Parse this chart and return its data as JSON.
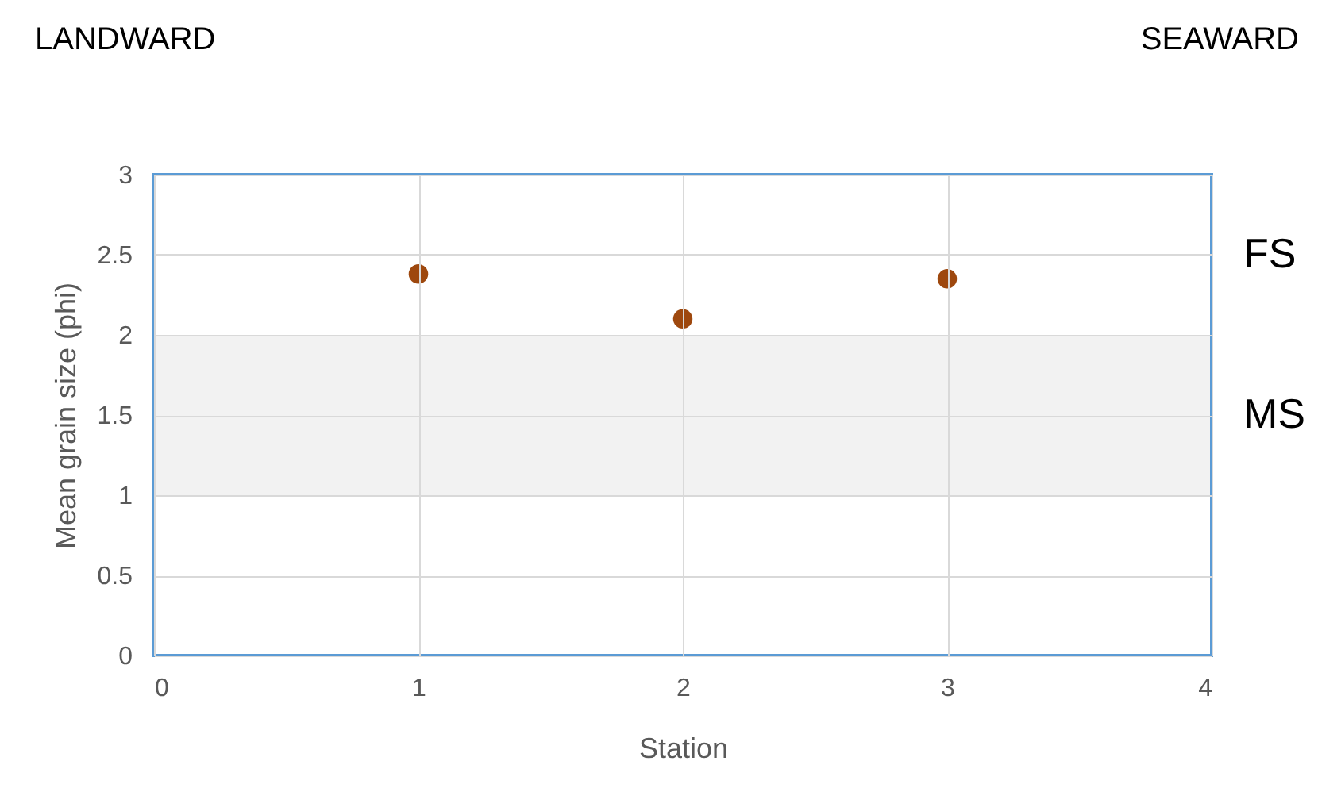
{
  "chart_data": {
    "type": "scatter",
    "xlabel": "Station",
    "ylabel": "Mean grain size (phi)",
    "x": [
      1,
      2,
      3
    ],
    "series": [
      {
        "color": "#9e480e",
        "values": [
          2.38,
          2.1,
          2.35
        ]
      }
    ],
    "xlim": [
      0,
      4
    ],
    "xticks": [
      0,
      1,
      2,
      3,
      4
    ],
    "ylim": [
      0,
      3
    ],
    "yticks": [
      0,
      0.5,
      1,
      1.5,
      2,
      2.5,
      3
    ],
    "bands": [
      {
        "axis": "y",
        "from": 2,
        "to": 3,
        "label": "FS",
        "color": "#ffffff"
      },
      {
        "axis": "y",
        "from": 1,
        "to": 2,
        "label": "MS",
        "color": "#f2f2f2"
      }
    ],
    "annotations": [
      "LANDWARD",
      "SEAWARD"
    ],
    "grid": true,
    "marker": "circle"
  }
}
